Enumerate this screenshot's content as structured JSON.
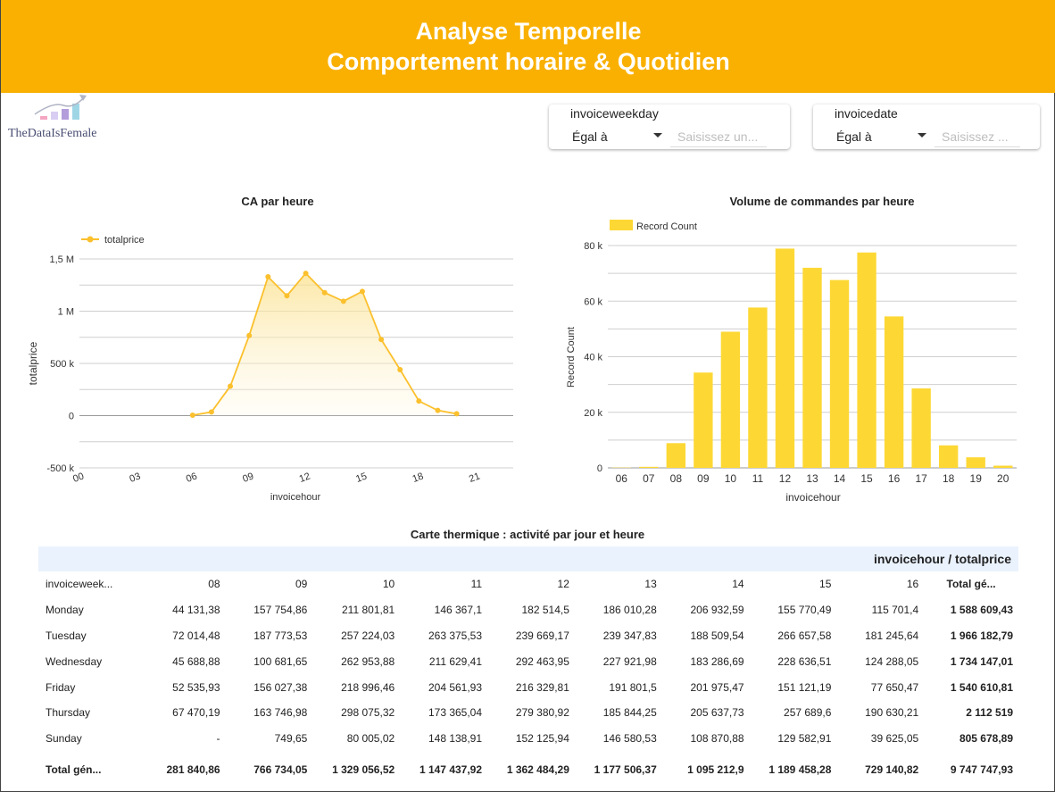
{
  "header": {
    "title": "Analyse Temporelle",
    "subtitle": "Comportement horaire & Quotidien"
  },
  "logo": {
    "text": "TheDataIsFemale"
  },
  "filters": [
    {
      "label": "invoiceweekday",
      "operator": "Égal à",
      "placeholder": "Saisissez un..."
    },
    {
      "label": "invoicedate",
      "operator": "Égal à",
      "placeholder": "Saisissez ..."
    }
  ],
  "colors": {
    "accent": "#f9b000",
    "line": "#fbc02d",
    "bar": "#fdd835",
    "heat_header": "#eaf2fd"
  },
  "chart_data": [
    {
      "type": "line",
      "title": "CA par heure",
      "legend": "totalprice",
      "xlabel": "invoicehour",
      "ylabel": "totalprice",
      "x_ticks": [
        "00",
        "03",
        "06",
        "09",
        "12",
        "15",
        "18",
        "21"
      ],
      "y_ticks": [
        "1,5 M",
        "1 M",
        "500 k",
        "0",
        "-500 k"
      ],
      "ylim": [
        -500000,
        1500000
      ],
      "xlim": [
        0,
        23
      ],
      "x": [
        6,
        7,
        8,
        9,
        10,
        11,
        12,
        13,
        14,
        15,
        16,
        17,
        18,
        19,
        20
      ],
      "values": [
        4000,
        35000,
        281840,
        766734,
        1329056,
        1147437,
        1362484,
        1177506,
        1095212,
        1189458,
        729140,
        440000,
        140000,
        50000,
        18000
      ]
    },
    {
      "type": "bar",
      "title": "Volume de commandes par heure",
      "legend": "Record Count",
      "xlabel": "invoicehour",
      "ylabel": "Record Count",
      "categories": [
        "06",
        "07",
        "08",
        "09",
        "10",
        "11",
        "12",
        "13",
        "14",
        "15",
        "16",
        "17",
        "18",
        "19",
        "20"
      ],
      "y_ticks": [
        "80 k",
        "60 k",
        "40 k",
        "20 k",
        "0"
      ],
      "ylim": [
        0,
        80000
      ],
      "values": [
        100,
        380,
        8900,
        34300,
        49000,
        57700,
        78900,
        72000,
        67600,
        77500,
        54500,
        28600,
        8100,
        3800,
        800
      ]
    }
  ],
  "heatmap": {
    "title": "Carte thermique : activité par jour et heure",
    "header": "invoicehour / totalprice",
    "columns": [
      "invoiceweek...",
      "08",
      "09",
      "10",
      "11",
      "12",
      "13",
      "14",
      "15",
      "16",
      "Total gé..."
    ],
    "rows": [
      [
        "Monday",
        "44 131,38",
        "157 754,86",
        "211 801,81",
        "146 367,1",
        "182 514,5",
        "186 010,28",
        "206 932,59",
        "155 770,49",
        "115 701,4",
        "1 588 609,43"
      ],
      [
        "Tuesday",
        "72 014,48",
        "187 773,53",
        "257 224,03",
        "263 375,53",
        "239 669,17",
        "239 347,83",
        "188 509,54",
        "266 657,58",
        "181 245,64",
        "1 966 182,79"
      ],
      [
        "Wednesday",
        "45 688,88",
        "100 681,65",
        "262 953,88",
        "211 629,41",
        "292 463,95",
        "227 921,98",
        "183 286,69",
        "228 636,51",
        "124 288,05",
        "1 734 147,01"
      ],
      [
        "Friday",
        "52 535,93",
        "156 027,38",
        "218 996,46",
        "204 561,93",
        "216 329,81",
        "191 801,5",
        "201 975,47",
        "151 121,19",
        "77 650,47",
        "1 540 610,81"
      ],
      [
        "Thursday",
        "67 470,19",
        "163 746,98",
        "298 075,32",
        "173 365,04",
        "279 380,92",
        "185 844,25",
        "205 637,73",
        "257 689,6",
        "190 630,21",
        "2 112 519"
      ],
      [
        "Sunday",
        "-",
        "749,65",
        "80 005,02",
        "148 138,91",
        "152 125,94",
        "146 580,53",
        "108 870,88",
        "129 582,91",
        "39 625,05",
        "805 678,89"
      ]
    ],
    "totals": [
      "Total gén...",
      "281 840,86",
      "766 734,05",
      "1 329 056,52",
      "1 147 437,92",
      "1 362 484,29",
      "1 177 506,37",
      "1 095 212,9",
      "1 189 458,28",
      "729 140,82",
      "9 747 747,93"
    ]
  }
}
